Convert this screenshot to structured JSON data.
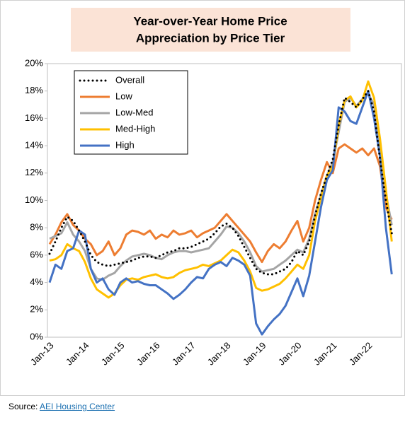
{
  "chart_data": {
    "type": "line",
    "title": [
      "Year-over-Year Home Price",
      "Appreciation by Price Tier"
    ],
    "categories": [
      "Jan-13",
      null,
      null,
      null,
      null,
      null,
      "Jan-14",
      null,
      null,
      null,
      null,
      null,
      "Jan-15",
      null,
      null,
      null,
      null,
      null,
      "Jan-16",
      null,
      null,
      null,
      null,
      null,
      "Jan-17",
      null,
      null,
      null,
      null,
      null,
      "Jan-18",
      null,
      null,
      null,
      null,
      null,
      "Jan-19",
      null,
      null,
      null,
      null,
      null,
      "Jan-20",
      null,
      null,
      null,
      null,
      null,
      "Jan-21",
      null,
      null,
      null,
      null,
      null,
      "Jan-22",
      null,
      null,
      null,
      null
    ],
    "series": [
      {
        "name": "Overall",
        "color": "#000000",
        "dotted": true,
        "values": [
          6.1,
          7.0,
          8.0,
          8.8,
          8.5,
          7.8,
          7.0,
          6.0,
          5.5,
          5.3,
          5.2,
          5.3,
          5.4,
          5.5,
          5.6,
          5.8,
          5.9,
          5.9,
          5.8,
          6.0,
          6.2,
          6.3,
          6.5,
          6.5,
          6.6,
          6.8,
          7.0,
          7.2,
          7.6,
          8.1,
          8.3,
          8.0,
          7.4,
          6.6,
          5.8,
          5.0,
          4.7,
          4.6,
          4.6,
          4.8,
          5.0,
          5.5,
          6.3,
          6.0,
          7.0,
          8.9,
          10.5,
          11.8,
          13.0,
          15.5,
          17.5,
          17.2,
          16.8,
          17.4,
          18.0,
          16.5,
          13.0,
          10.0,
          7.6
        ]
      },
      {
        "name": "Low",
        "color": "#ED7D31",
        "values": [
          6.8,
          7.5,
          8.4,
          9.0,
          8.2,
          7.8,
          7.2,
          6.8,
          6.0,
          6.3,
          7.0,
          6.0,
          6.5,
          7.5,
          7.8,
          7.7,
          7.5,
          7.8,
          7.2,
          7.5,
          7.3,
          7.8,
          7.5,
          7.6,
          7.8,
          7.3,
          7.6,
          7.8,
          8.0,
          8.5,
          9.0,
          8.5,
          8.0,
          7.5,
          7.0,
          6.2,
          5.5,
          6.3,
          6.8,
          6.5,
          7.0,
          7.8,
          8.5,
          7.0,
          8.0,
          10.0,
          11.5,
          12.8,
          12.0,
          13.8,
          14.1,
          13.8,
          13.5,
          13.8,
          13.3,
          13.8,
          12.5,
          9.5,
          8.6
        ]
      },
      {
        "name": "Low-Med",
        "color": "#A5A5A5",
        "values": [
          7.2,
          7.4,
          7.6,
          8.4,
          7.5,
          7.0,
          6.3,
          5.0,
          4.3,
          4.2,
          4.5,
          4.7,
          5.2,
          5.6,
          5.9,
          6.0,
          6.1,
          6.0,
          5.8,
          5.7,
          6.0,
          6.2,
          6.3,
          6.3,
          6.2,
          6.3,
          6.4,
          6.5,
          7.0,
          7.5,
          8.1,
          8.0,
          7.6,
          7.0,
          6.2,
          5.2,
          4.8,
          4.9,
          5.0,
          5.3,
          5.6,
          6.0,
          6.4,
          6.2,
          7.2,
          9.0,
          10.4,
          11.8,
          12.8,
          15.0,
          17.2,
          17.5,
          16.9,
          17.4,
          17.8,
          17.0,
          14.0,
          10.5,
          8.2
        ]
      },
      {
        "name": "Med-High",
        "color": "#FFC000",
        "values": [
          5.6,
          5.7,
          6.0,
          6.8,
          6.5,
          6.3,
          5.5,
          4.3,
          3.5,
          3.2,
          2.9,
          3.2,
          3.8,
          4.2,
          4.3,
          4.2,
          4.4,
          4.5,
          4.6,
          4.4,
          4.3,
          4.4,
          4.7,
          4.9,
          5.0,
          5.1,
          5.3,
          5.2,
          5.4,
          5.6,
          6.0,
          6.4,
          6.2,
          5.6,
          4.8,
          3.6,
          3.4,
          3.5,
          3.7,
          3.9,
          4.3,
          4.8,
          5.3,
          5.0,
          6.0,
          8.5,
          10.2,
          11.8,
          12.5,
          15.5,
          17.3,
          17.6,
          16.8,
          17.3,
          18.7,
          17.5,
          14.5,
          10.8,
          7.0
        ]
      },
      {
        "name": "High",
        "color": "#4472C4",
        "values": [
          4.0,
          5.3,
          5.0,
          6.3,
          6.5,
          7.8,
          7.5,
          5.0,
          4.0,
          4.3,
          3.5,
          3.1,
          4.0,
          4.3,
          4.0,
          4.1,
          3.9,
          3.8,
          3.8,
          3.5,
          3.2,
          2.8,
          3.1,
          3.5,
          4.0,
          4.4,
          4.3,
          5.0,
          5.3,
          5.5,
          5.2,
          5.8,
          5.6,
          5.3,
          4.5,
          1.0,
          0.2,
          0.8,
          1.3,
          1.7,
          2.3,
          3.3,
          4.3,
          3.0,
          4.5,
          7.0,
          9.5,
          11.5,
          12.2,
          16.8,
          16.5,
          15.8,
          15.6,
          16.8,
          18.0,
          16.0,
          13.2,
          8.0,
          4.6
        ]
      }
    ],
    "ylim": [
      0,
      20
    ],
    "yticks": [
      {
        "value": 0,
        "label": "0%"
      },
      {
        "value": 2,
        "label": "2%"
      },
      {
        "value": 4,
        "label": "4%"
      },
      {
        "value": 6,
        "label": "6%"
      },
      {
        "value": 8,
        "label": "8%"
      },
      {
        "value": 10,
        "label": "10%"
      },
      {
        "value": 12,
        "label": "12%"
      },
      {
        "value": 14,
        "label": "14%"
      },
      {
        "value": 16,
        "label": "16%"
      },
      {
        "value": 18,
        "label": "18%"
      },
      {
        "value": 20,
        "label": "20%"
      }
    ],
    "grid": false,
    "legend": "upper left",
    "source_label": "Source:",
    "source_link": "AEI Housing Center"
  }
}
